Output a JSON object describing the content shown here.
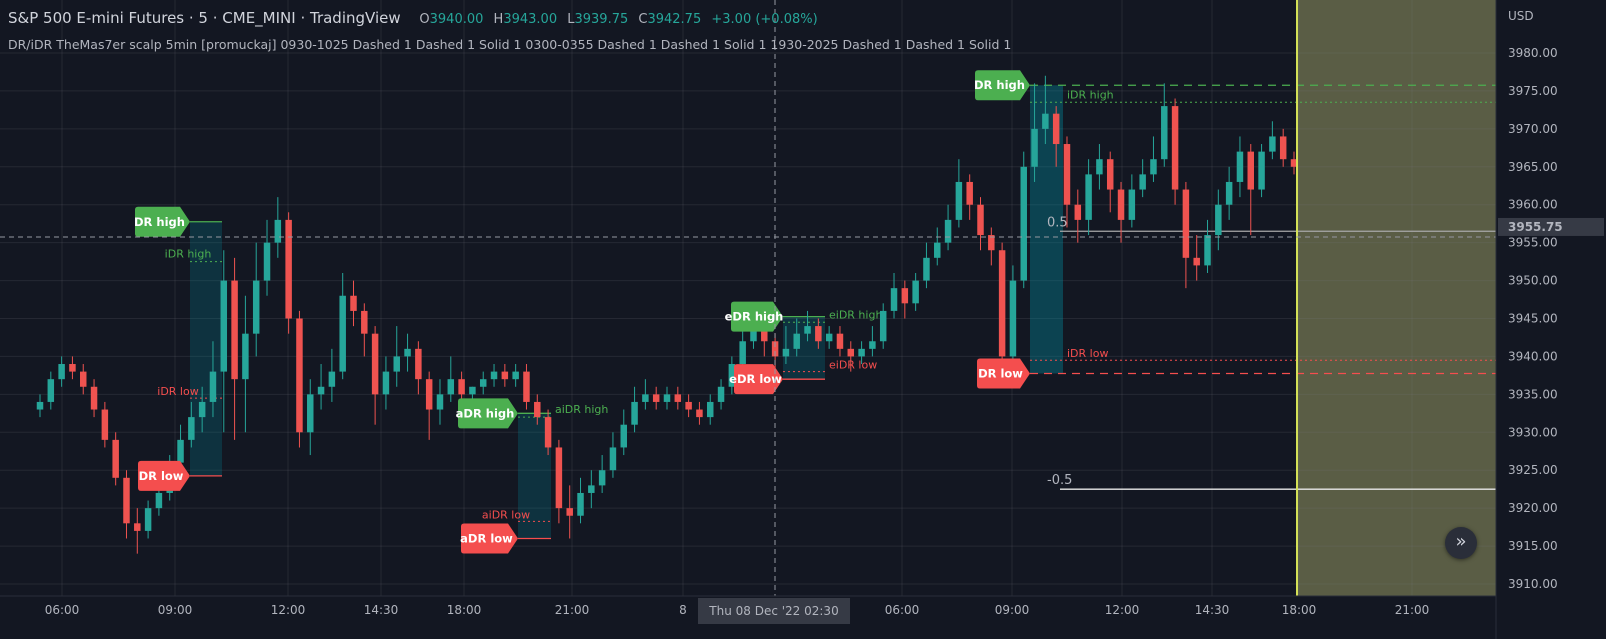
{
  "header": {
    "title": "S&P 500 E-mini Futures · 5 · CME_MINI · TradingView",
    "ohlc": [
      {
        "key": "O",
        "value": "3940.00"
      },
      {
        "key": "H",
        "value": "3943.00"
      },
      {
        "key": "L",
        "value": "3939.75"
      },
      {
        "key": "C",
        "value": "3942.75"
      }
    ],
    "change": "+3.00 (+0.08%)"
  },
  "indicator_line": "DR/iDR TheMas7er scalp 5min [promuckaj] 0930-1025 Dashed 1 Dashed 1 Solid 1 0300-0355 Dashed 1 Dashed 1 Solid 1 1930-2025 Dashed 1 Dashed 1 Solid 1",
  "colors": {
    "background": "#131722",
    "up": "#26a69a",
    "down": "#ef5350",
    "dr_high_tag": "#4caf50",
    "dr_low_tag": "#f44e4e",
    "future_zone": "#5a5d45",
    "session_line": "#d4e157"
  },
  "scroll_button_icon": "double-chevron-right-icon",
  "chart_data": {
    "type": "candlestick",
    "currency": "USD",
    "ylim": [
      3910,
      3980
    ],
    "y_ticks": [
      "3980.00",
      "3975.00",
      "3970.00",
      "3965.00",
      "3960.00",
      "3955.00",
      "3950.00",
      "3945.00",
      "3940.00",
      "3935.00",
      "3930.00",
      "3925.00",
      "3920.00",
      "3915.00",
      "3910.00"
    ],
    "x_ticks": [
      "06:00",
      "09:00",
      "12:00",
      "14:30",
      "18:00",
      "21:00",
      "8",
      "06:00",
      "09:00",
      "12:00",
      "14:30",
      "18:00",
      "21:00"
    ],
    "crosshair": {
      "price": "3955.75",
      "time": "Thu 08 Dec '22   02:30"
    },
    "ohlc": [
      [
        3933,
        3935,
        3932,
        3934
      ],
      [
        3934,
        3938,
        3933,
        3937
      ],
      [
        3937,
        3940,
        3936,
        3939
      ],
      [
        3939,
        3940,
        3937,
        3938
      ],
      [
        3938,
        3939,
        3935,
        3936
      ],
      [
        3936,
        3937,
        3932,
        3933
      ],
      [
        3933,
        3934,
        3928,
        3929
      ],
      [
        3929,
        3930,
        3923,
        3924
      ],
      [
        3924,
        3925,
        3916,
        3918
      ],
      [
        3918,
        3920,
        3914,
        3917
      ],
      [
        3917,
        3921,
        3916,
        3920
      ],
      [
        3920,
        3924,
        3919,
        3922
      ],
      [
        3922,
        3927,
        3921,
        3926
      ],
      [
        3926,
        3931,
        3925,
        3929
      ],
      [
        3929,
        3934,
        3928,
        3932
      ],
      [
        3932,
        3936,
        3930,
        3934
      ],
      [
        3934,
        3942,
        3932,
        3938
      ],
      [
        3938,
        3954,
        3930,
        3950
      ],
      [
        3950,
        3953,
        3929,
        3937
      ],
      [
        3937,
        3948,
        3930,
        3943
      ],
      [
        3943,
        3955,
        3940,
        3950
      ],
      [
        3950,
        3958,
        3948,
        3955
      ],
      [
        3955,
        3961,
        3953,
        3958
      ],
      [
        3958,
        3959,
        3943,
        3945
      ],
      [
        3945,
        3946,
        3928,
        3930
      ],
      [
        3930,
        3937,
        3927,
        3935
      ],
      [
        3935,
        3939,
        3933,
        3936
      ],
      [
        3936,
        3941,
        3934,
        3938
      ],
      [
        3938,
        3951,
        3937,
        3948
      ],
      [
        3948,
        3950,
        3944,
        3946
      ],
      [
        3946,
        3947,
        3940,
        3943
      ],
      [
        3943,
        3944,
        3931,
        3935
      ],
      [
        3935,
        3940,
        3933,
        3938
      ],
      [
        3938,
        3944,
        3936,
        3940
      ],
      [
        3940,
        3943,
        3938,
        3941
      ],
      [
        3941,
        3942,
        3935,
        3937
      ],
      [
        3937,
        3938,
        3929,
        3933
      ],
      [
        3933,
        3937,
        3931,
        3935
      ],
      [
        3935,
        3940,
        3934,
        3937
      ],
      [
        3937,
        3938,
        3934,
        3935
      ],
      [
        3935,
        3936,
        3934,
        3936
      ],
      [
        3936,
        3938,
        3935,
        3937
      ],
      [
        3937,
        3939,
        3936,
        3938
      ],
      [
        3938,
        3939,
        3936,
        3937
      ],
      [
        3937,
        3939,
        3936,
        3938
      ],
      [
        3938,
        3939,
        3933,
        3934
      ],
      [
        3934,
        3935,
        3931,
        3932
      ],
      [
        3932,
        3933,
        3927,
        3928
      ],
      [
        3928,
        3929,
        3918,
        3920
      ],
      [
        3920,
        3923,
        3916,
        3919
      ],
      [
        3919,
        3924,
        3918,
        3922
      ],
      [
        3922,
        3925,
        3920,
        3923
      ],
      [
        3923,
        3927,
        3922,
        3925
      ],
      [
        3925,
        3930,
        3924,
        3928
      ],
      [
        3928,
        3933,
        3927,
        3931
      ],
      [
        3931,
        3936,
        3930,
        3934
      ],
      [
        3934,
        3937,
        3933,
        3935
      ],
      [
        3935,
        3936,
        3933,
        3934
      ],
      [
        3934,
        3936,
        3933,
        3935
      ],
      [
        3935,
        3936,
        3933,
        3934
      ],
      [
        3934,
        3935,
        3932,
        3933
      ],
      [
        3933,
        3934,
        3931,
        3932
      ],
      [
        3932,
        3935,
        3931,
        3934
      ],
      [
        3934,
        3937,
        3933,
        3936
      ],
      [
        3936,
        3940,
        3935,
        3939
      ],
      [
        3939,
        3944,
        3938,
        3942
      ],
      [
        3942,
        3947,
        3941,
        3945
      ],
      [
        3945,
        3946,
        3940,
        3942
      ],
      [
        3942,
        3943,
        3938,
        3940
      ],
      [
        3940,
        3944,
        3939,
        3941
      ],
      [
        3941,
        3945,
        3940,
        3943
      ],
      [
        3943,
        3946,
        3942,
        3944
      ],
      [
        3944,
        3945,
        3941,
        3942
      ],
      [
        3942,
        3944,
        3941,
        3943
      ],
      [
        3943,
        3944,
        3940,
        3941
      ],
      [
        3941,
        3942,
        3938,
        3940
      ],
      [
        3940,
        3942,
        3939,
        3941
      ],
      [
        3941,
        3944,
        3940,
        3942
      ],
      [
        3942,
        3947,
        3941,
        3946
      ],
      [
        3946,
        3951,
        3945,
        3949
      ],
      [
        3949,
        3950,
        3945,
        3947
      ],
      [
        3947,
        3951,
        3946,
        3950
      ],
      [
        3950,
        3955,
        3949,
        3953
      ],
      [
        3953,
        3957,
        3952,
        3955
      ],
      [
        3955,
        3960,
        3954,
        3958
      ],
      [
        3958,
        3966,
        3957,
        3963
      ],
      [
        3963,
        3964,
        3958,
        3960
      ],
      [
        3960,
        3961,
        3954,
        3956
      ],
      [
        3956,
        3957,
        3952,
        3954
      ],
      [
        3954,
        3955,
        3938,
        3940
      ],
      [
        3940,
        3952,
        3938,
        3950
      ],
      [
        3950,
        3967,
        3949,
        3965
      ],
      [
        3965,
        3976,
        3963,
        3970
      ],
      [
        3970,
        3977,
        3968,
        3972
      ],
      [
        3972,
        3973,
        3965,
        3968
      ],
      [
        3968,
        3969,
        3957,
        3960
      ],
      [
        3960,
        3962,
        3955,
        3958
      ],
      [
        3958,
        3966,
        3956,
        3964
      ],
      [
        3964,
        3968,
        3962,
        3966
      ],
      [
        3966,
        3967,
        3959,
        3962
      ],
      [
        3962,
        3963,
        3955,
        3958
      ],
      [
        3958,
        3964,
        3957,
        3962
      ],
      [
        3962,
        3966,
        3961,
        3964
      ],
      [
        3964,
        3969,
        3963,
        3966
      ],
      [
        3966,
        3976,
        3965,
        3973
      ],
      [
        3973,
        3974,
        3960,
        3962
      ],
      [
        3962,
        3963,
        3949,
        3953
      ],
      [
        3953,
        3956,
        3950,
        3952
      ],
      [
        3952,
        3958,
        3951,
        3956
      ],
      [
        3956,
        3962,
        3954,
        3960
      ],
      [
        3960,
        3965,
        3958,
        3963
      ],
      [
        3963,
        3969,
        3961,
        3967
      ],
      [
        3967,
        3968,
        3956,
        3962
      ],
      [
        3962,
        3968,
        3961,
        3967
      ],
      [
        3967,
        3971,
        3966,
        3969
      ],
      [
        3969,
        3970,
        3965,
        3966
      ],
      [
        3966,
        3967,
        3964,
        3965
      ]
    ],
    "ranges": [
      {
        "high": 3957.75,
        "low": 3924.25,
        "ihigh": 3952.5,
        "ilow": 3934.5,
        "high_label": "DR high",
        "low_label": "DR low",
        "ihigh_label": "iDR high",
        "ilow_label": "iDR low"
      },
      {
        "high": 3932.5,
        "low": 3916.0,
        "ihigh": 3932.0,
        "ilow": 3918.25,
        "high_label": "aDR high",
        "low_label": "aDR low",
        "ihigh_label": "aiDR high",
        "ilow_label": "aiDR low"
      },
      {
        "high": 3945.25,
        "low": 3937.0,
        "ihigh": 3944.5,
        "ilow": 3938.0,
        "high_label": "eDR high",
        "low_label": "eDR low",
        "ihigh_label": "eiDR high",
        "ilow_label": "eiDR low"
      },
      {
        "high": 3975.75,
        "low": 3937.75,
        "ihigh": 3973.5,
        "ilow": 3939.5,
        "high_label": "DR high",
        "low_label": "DR low",
        "ihigh_label": "iDR high",
        "ilow_label": "iDR low"
      }
    ],
    "levels": [
      {
        "label": "0.5",
        "price": 3956.5
      },
      {
        "label": "-0.5",
        "price": 3922.5
      }
    ]
  }
}
